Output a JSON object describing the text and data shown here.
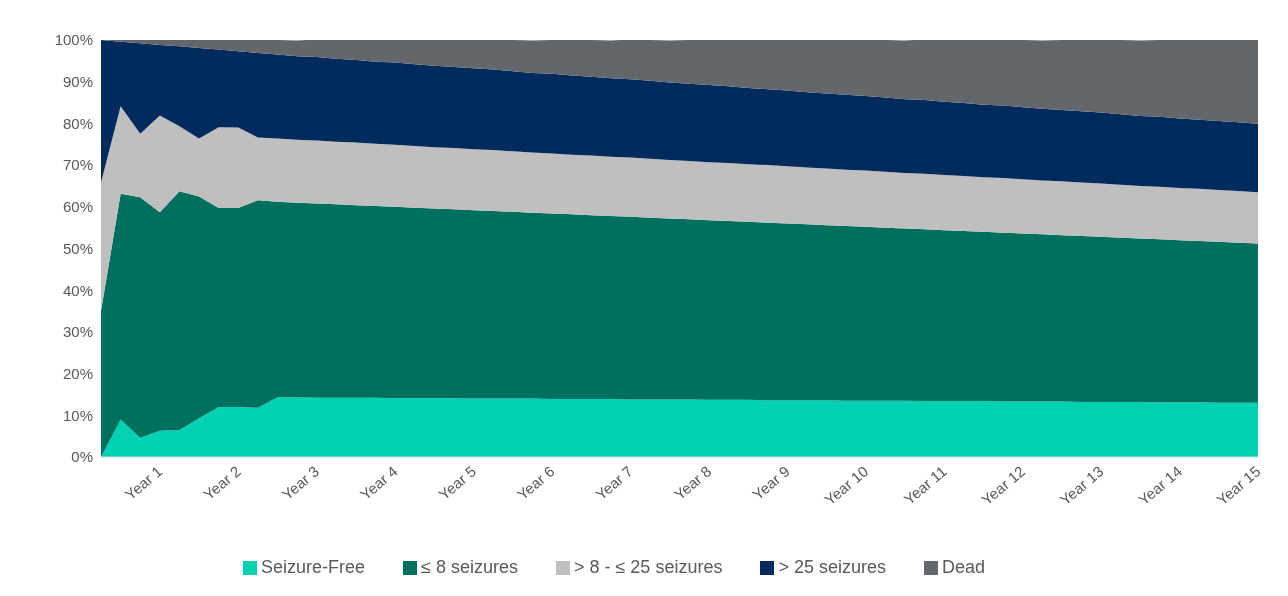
{
  "chart_data": {
    "type": "area",
    "stacked": true,
    "legend": "bottom",
    "categories": [
      null,
      null,
      null,
      "Year 1",
      null,
      null,
      null,
      "Year 2",
      null,
      null,
      null,
      "Year 3",
      null,
      null,
      null,
      "Year 4",
      null,
      null,
      null,
      "Year 5",
      null,
      null,
      null,
      "Year 6",
      null,
      null,
      null,
      "Year 7",
      null,
      null,
      null,
      "Year 8",
      null,
      null,
      null,
      "Year 9",
      null,
      null,
      null,
      "Year 10",
      null,
      null,
      null,
      "Year 11",
      null,
      null,
      null,
      "Year 12",
      null,
      null,
      null,
      "Year 13",
      null,
      null,
      null,
      "Year 14",
      null,
      null,
      null,
      "Year 15"
    ],
    "ylim": [
      0,
      100
    ],
    "yticks": [
      {
        "value": 0,
        "label": "0%"
      },
      {
        "value": 10,
        "label": "10%"
      },
      {
        "value": 20,
        "label": "20%"
      },
      {
        "value": 30,
        "label": "30%"
      },
      {
        "value": 40,
        "label": "40%"
      },
      {
        "value": 50,
        "label": "50%"
      },
      {
        "value": 60,
        "label": "60%"
      },
      {
        "value": 70,
        "label": "70%"
      },
      {
        "value": 80,
        "label": "80%"
      },
      {
        "value": 90,
        "label": "90%"
      },
      {
        "value": 100,
        "label": "100%"
      }
    ],
    "series": [
      {
        "name": "Seizure-Free",
        "color": "#00d1b2",
        "values": [
          0,
          9.0,
          4.6,
          6.3,
          6.5,
          9.3,
          12.0,
          12.0,
          11.8,
          14.3,
          14.3,
          14.2,
          14.2,
          14.2,
          14.2,
          14.1,
          14.1,
          14.1,
          14.1,
          14.0,
          14.0,
          14.0,
          14.0,
          13.9,
          13.9,
          13.9,
          13.9,
          13.8,
          13.8,
          13.8,
          13.8,
          13.7,
          13.7,
          13.7,
          13.6,
          13.6,
          13.6,
          13.6,
          13.5,
          13.5,
          13.5,
          13.5,
          13.4,
          13.4,
          13.4,
          13.4,
          13.3,
          13.3,
          13.3,
          13.3,
          13.2,
          13.2,
          13.2,
          13.2,
          13.1,
          13.1,
          13.1,
          13.0,
          13.0,
          13.0
        ]
      },
      {
        "name": "≤ 8 seizures",
        "color": "#00705e",
        "values": [
          35.0,
          54.1,
          57.7,
          52.4,
          57.2,
          53.2,
          47.7,
          47.7,
          49.8,
          46.9,
          46.7,
          46.6,
          46.4,
          46.2,
          46.0,
          45.9,
          45.7,
          45.5,
          45.3,
          45.2,
          45.0,
          44.8,
          44.6,
          44.5,
          44.3,
          44.1,
          43.9,
          43.8,
          43.6,
          43.4,
          43.2,
          43.1,
          42.9,
          42.7,
          42.6,
          42.4,
          42.2,
          42.0,
          41.9,
          41.7,
          41.5,
          41.3,
          41.2,
          41.0,
          40.8,
          40.6,
          40.5,
          40.3,
          40.1,
          39.9,
          39.8,
          39.6,
          39.4,
          39.2,
          39.1,
          38.9,
          38.7,
          38.6,
          38.4,
          38.2
        ]
      },
      {
        "name": "> 8 -  ≤ 25 seizures",
        "color": "#bfbfbf",
        "values": [
          30.8,
          21.0,
          15.2,
          23.2,
          15.6,
          13.9,
          19.4,
          19.3,
          15.0,
          15.2,
          15.1,
          15.1,
          15.0,
          15.0,
          14.9,
          14.9,
          14.8,
          14.7,
          14.7,
          14.6,
          14.6,
          14.5,
          14.4,
          14.4,
          14.3,
          14.3,
          14.2,
          14.2,
          14.1,
          14.0,
          14.0,
          13.9,
          13.9,
          13.8,
          13.8,
          13.7,
          13.6,
          13.6,
          13.5,
          13.5,
          13.4,
          13.3,
          13.3,
          13.2,
          13.2,
          13.1,
          13.1,
          13.0,
          12.9,
          12.9,
          12.8,
          12.8,
          12.7,
          12.6,
          12.6,
          12.5,
          12.5,
          12.4,
          12.4,
          12.3
        ]
      },
      {
        "name": "> 25 seizures",
        "color": "#002b5c",
        "values": [
          34.2,
          15.5,
          21.7,
          16.9,
          19.2,
          21.7,
          18.6,
          18.3,
          20.3,
          20.1,
          20.0,
          20.0,
          19.9,
          19.8,
          19.7,
          19.7,
          19.6,
          19.5,
          19.4,
          19.4,
          19.3,
          19.2,
          19.1,
          19.1,
          19.0,
          18.9,
          18.8,
          18.8,
          18.7,
          18.6,
          18.5,
          18.5,
          18.4,
          18.3,
          18.2,
          18.2,
          18.1,
          18.0,
          18.0,
          17.9,
          17.8,
          17.7,
          17.7,
          17.6,
          17.5,
          17.4,
          17.4,
          17.3,
          17.2,
          17.1,
          17.1,
          17.0,
          16.9,
          16.8,
          16.8,
          16.7,
          16.6,
          16.6,
          16.5,
          16.4
        ]
      },
      {
        "name": "Dead",
        "color": "#63666a",
        "values": [
          0,
          0.4,
          0.8,
          1.2,
          1.5,
          1.9,
          2.3,
          2.7,
          3.1,
          3.5,
          3.8,
          4.2,
          4.5,
          4.8,
          5.2,
          5.5,
          5.8,
          6.2,
          6.5,
          6.8,
          7.2,
          7.5,
          7.8,
          8.1,
          8.5,
          8.8,
          9.1,
          9.5,
          9.8,
          10.1,
          10.5,
          10.8,
          11.1,
          11.5,
          11.8,
          12.1,
          12.5,
          12.8,
          13.1,
          13.5,
          13.8,
          14.1,
          14.5,
          14.8,
          15.1,
          15.5,
          15.8,
          16.1,
          16.4,
          16.8,
          17.1,
          17.4,
          17.8,
          18.1,
          18.4,
          18.8,
          19.1,
          19.4,
          19.8,
          20.1
        ]
      }
    ]
  }
}
